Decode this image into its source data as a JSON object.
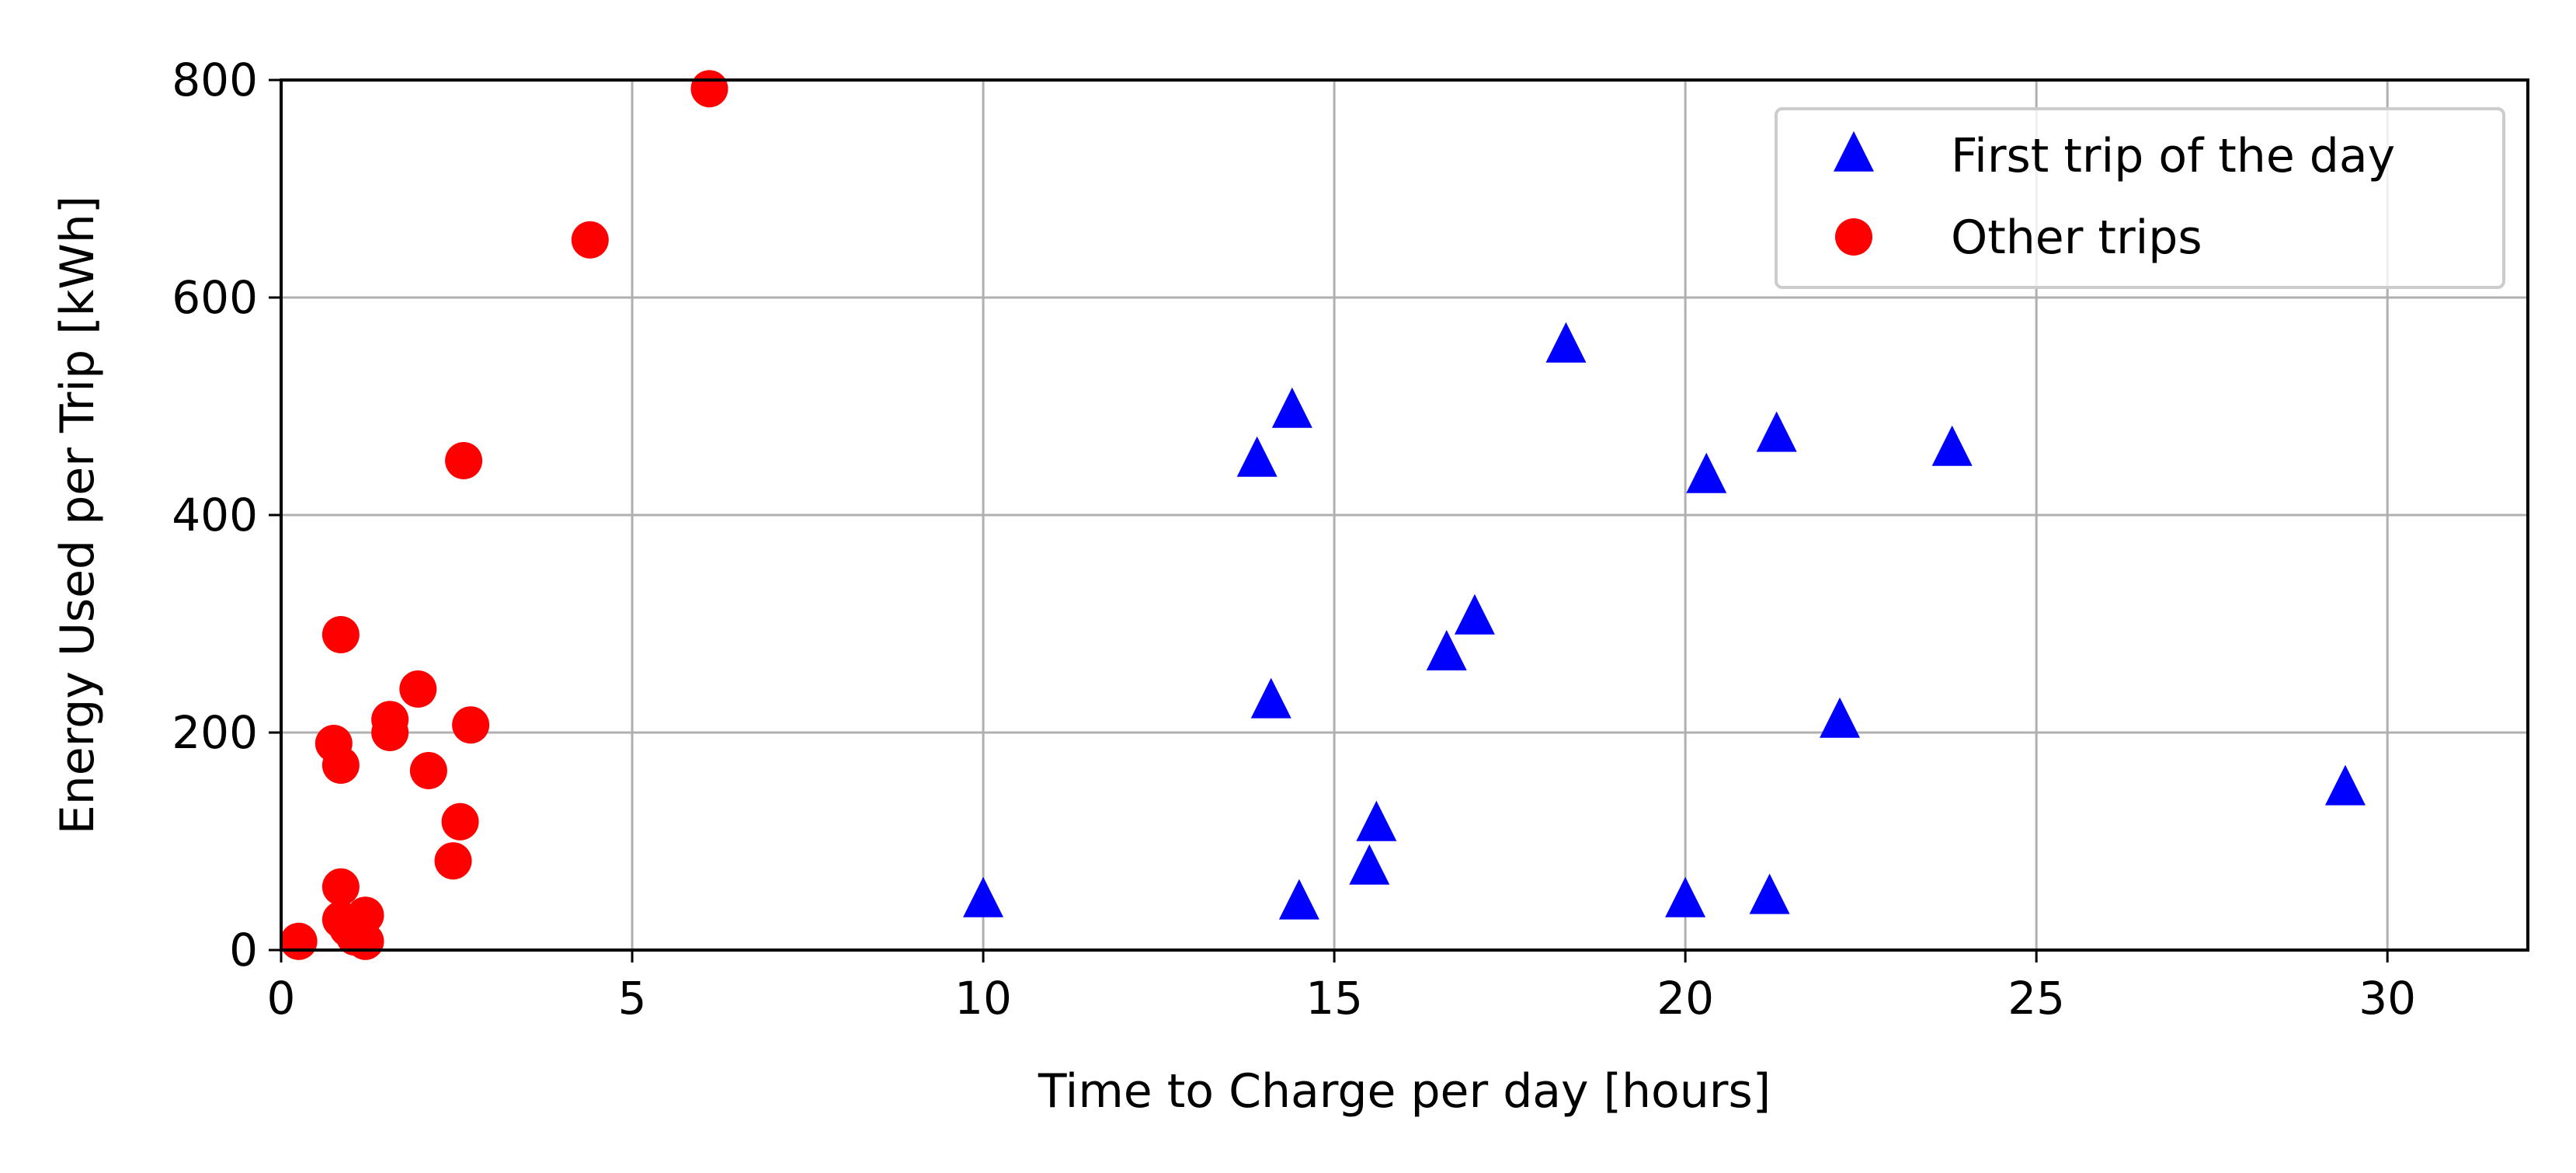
{
  "chart_data": {
    "type": "scatter",
    "title": "",
    "xlabel": "Time to Charge per day [hours]",
    "ylabel": "Energy Used per Trip [kWh]",
    "xlim": [
      0,
      32
    ],
    "ylim": [
      0,
      800
    ],
    "xticks": [
      0,
      5,
      10,
      15,
      20,
      25,
      30
    ],
    "yticks": [
      0,
      200,
      400,
      600,
      800
    ],
    "grid": true,
    "legend_position": "top-right",
    "series": [
      {
        "name": "First trip of the day",
        "marker": "triangle",
        "color": "#0000ff",
        "points": [
          {
            "x": 10.0,
            "y": 45
          },
          {
            "x": 13.9,
            "y": 450
          },
          {
            "x": 14.1,
            "y": 228
          },
          {
            "x": 14.4,
            "y": 495
          },
          {
            "x": 14.5,
            "y": 43
          },
          {
            "x": 15.5,
            "y": 75
          },
          {
            "x": 15.6,
            "y": 115
          },
          {
            "x": 16.6,
            "y": 272
          },
          {
            "x": 17.0,
            "y": 305
          },
          {
            "x": 18.3,
            "y": 555
          },
          {
            "x": 20.0,
            "y": 45
          },
          {
            "x": 20.3,
            "y": 435
          },
          {
            "x": 21.2,
            "y": 48
          },
          {
            "x": 21.3,
            "y": 473
          },
          {
            "x": 22.2,
            "y": 210
          },
          {
            "x": 23.8,
            "y": 460
          },
          {
            "x": 29.4,
            "y": 148
          }
        ]
      },
      {
        "name": "Other trips",
        "marker": "circle",
        "color": "#ff0000",
        "points": [
          {
            "x": 0.25,
            "y": 8
          },
          {
            "x": 0.75,
            "y": 190
          },
          {
            "x": 0.85,
            "y": 290
          },
          {
            "x": 0.85,
            "y": 170
          },
          {
            "x": 0.85,
            "y": 58
          },
          {
            "x": 0.85,
            "y": 28
          },
          {
            "x": 0.95,
            "y": 20
          },
          {
            "x": 1.05,
            "y": 12
          },
          {
            "x": 1.2,
            "y": 8
          },
          {
            "x": 1.2,
            "y": 32
          },
          {
            "x": 1.55,
            "y": 212
          },
          {
            "x": 1.55,
            "y": 200
          },
          {
            "x": 1.95,
            "y": 240
          },
          {
            "x": 2.1,
            "y": 165
          },
          {
            "x": 2.45,
            "y": 82
          },
          {
            "x": 2.55,
            "y": 118
          },
          {
            "x": 2.6,
            "y": 450
          },
          {
            "x": 2.7,
            "y": 207
          },
          {
            "x": 4.4,
            "y": 653
          },
          {
            "x": 6.1,
            "y": 792
          }
        ]
      }
    ]
  }
}
